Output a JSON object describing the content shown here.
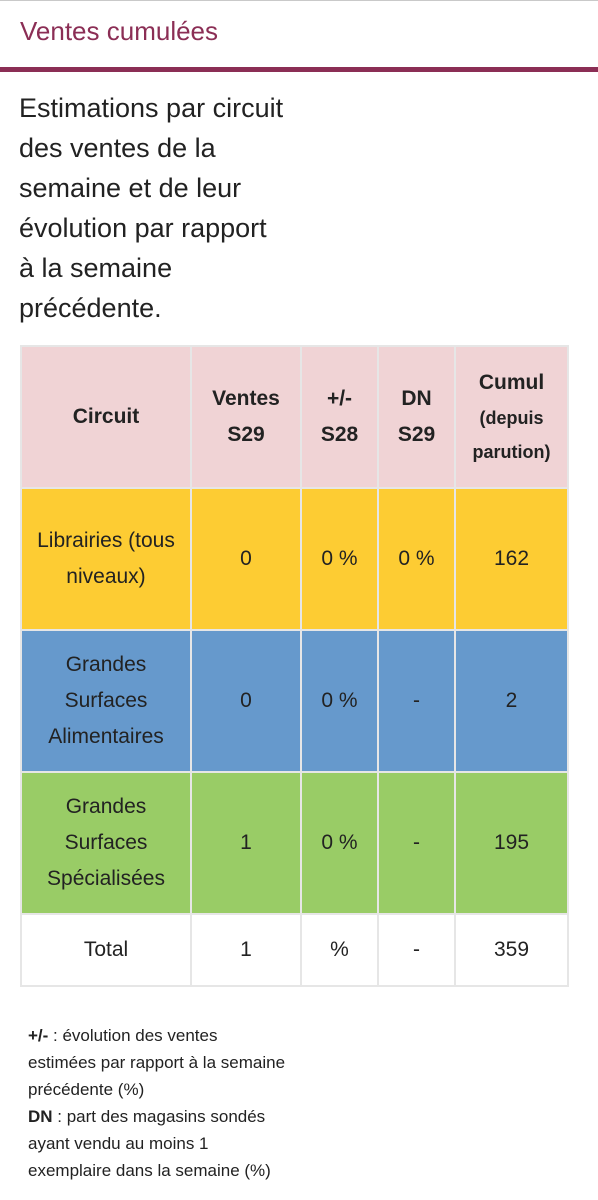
{
  "section": {
    "title": "Ventes cumulées",
    "accent_color": "#8b2e55"
  },
  "intro": "Estimations par circuit des ventes de la semaine et de leur évolution par rapport à la semaine précédente.",
  "table": {
    "headers": {
      "circuit": "Circuit",
      "ventes": "Ventes S29",
      "evolution": "+/- S28",
      "dn": "DN S29",
      "cumul": "Cumul",
      "cumul_sub": "(depuis parution)"
    },
    "rows": [
      {
        "circuit": "Librairies (tous niveaux)",
        "ventes": "0",
        "evolution": "0 %",
        "dn": "0 %",
        "cumul": "162",
        "color": "#fdcc33"
      },
      {
        "circuit": "Grandes Surfaces Alimentaires",
        "ventes": "0",
        "evolution": "0 %",
        "dn": "-",
        "cumul": "2",
        "color": "#6699cc"
      },
      {
        "circuit": "Grandes Surfaces Spécialisées",
        "ventes": "1",
        "evolution": "0 %",
        "dn": "-",
        "cumul": "195",
        "color": "#99cc66"
      }
    ],
    "total": {
      "circuit": "Total",
      "ventes": "1",
      "evolution": "%",
      "dn": "-",
      "cumul": "359"
    },
    "header_color": "#f0d3d5"
  },
  "legend": {
    "evolution_term": "+/-",
    "evolution_text": " : évolution des ventes estimées par rapport à la semaine précédente (%)",
    "dn_term": "DN",
    "dn_text": " : part des magasins sondés ayant vendu au moins 1 exemplaire dans la semaine (%)"
  }
}
